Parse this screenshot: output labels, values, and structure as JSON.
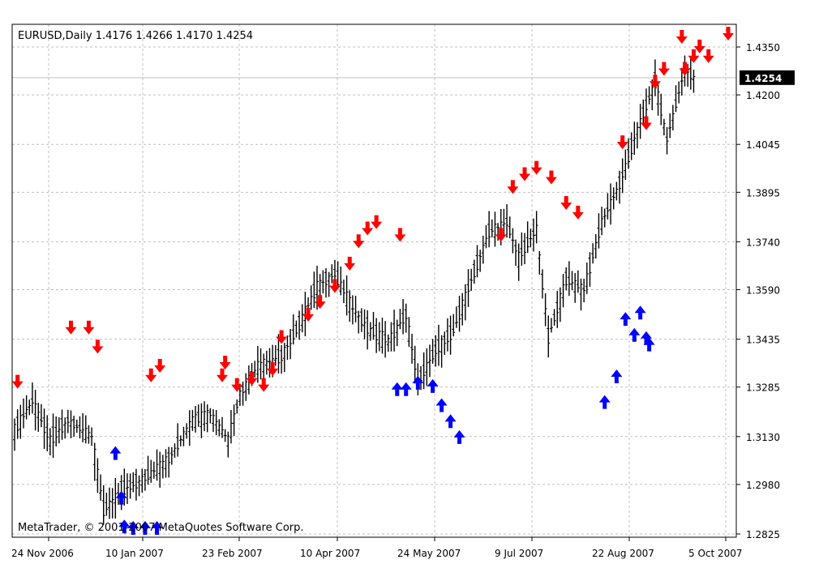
{
  "chart_data": {
    "type": "ohlc_bar",
    "symbol_header": "EURUSD,Daily  1.4176 1.4266 1.4170 1.4254",
    "copyright": "MetaTrader, © 2001-2007 MetaQuotes Software Corp.",
    "current_price_label": "1.4254",
    "current_price": 1.4254,
    "y_ticks": [
      "1.4350",
      "1.4200",
      "1.4045",
      "1.3895",
      "1.3740",
      "1.3590",
      "1.3435",
      "1.3285",
      "1.3130",
      "1.2980",
      "1.2825"
    ],
    "y_tick_values": [
      1.435,
      1.42,
      1.4045,
      1.3895,
      1.374,
      1.359,
      1.3435,
      1.3285,
      1.313,
      1.298,
      1.2825
    ],
    "ylim": [
      1.281,
      1.4425
    ],
    "x_ticks": [
      "24 Nov 2006",
      "10 Jan 2007",
      "23 Feb 2007",
      "10 Apr 2007",
      "24 May 2007",
      "9 Jul 2007",
      "22 Aug 2007",
      "5 Oct 2007"
    ],
    "bar_count": 230,
    "bars": [
      {
        "i": 0,
        "o": 1.309,
        "h": 1.3175,
        "l": 1.296,
        "c": 1.315
      },
      {
        "i": 6,
        "o": 1.315,
        "h": 1.327,
        "l": 1.312,
        "c": 1.324
      },
      {
        "i": 12,
        "o": 1.324,
        "h": 1.33,
        "l": 1.308,
        "c": 1.312
      },
      {
        "i": 18,
        "o": 1.312,
        "h": 1.32,
        "l": 1.305,
        "c": 1.318
      },
      {
        "i": 26,
        "o": 1.318,
        "h": 1.323,
        "l": 1.31,
        "c": 1.313
      },
      {
        "i": 30,
        "o": 1.313,
        "h": 1.315,
        "l": 1.287,
        "c": 1.29
      },
      {
        "i": 36,
        "o": 1.29,
        "h": 1.3,
        "l": 1.285,
        "c": 1.296
      },
      {
        "i": 44,
        "o": 1.296,
        "h": 1.303,
        "l": 1.288,
        "c": 1.3
      },
      {
        "i": 52,
        "o": 1.3,
        "h": 1.308,
        "l": 1.293,
        "c": 1.306
      },
      {
        "i": 60,
        "o": 1.306,
        "h": 1.32,
        "l": 1.304,
        "c": 1.318
      },
      {
        "i": 66,
        "o": 1.318,
        "h": 1.326,
        "l": 1.31,
        "c": 1.32
      },
      {
        "i": 72,
        "o": 1.32,
        "h": 1.328,
        "l": 1.308,
        "c": 1.312
      },
      {
        "i": 76,
        "o": 1.312,
        "h": 1.328,
        "l": 1.31,
        "c": 1.326
      },
      {
        "i": 82,
        "o": 1.326,
        "h": 1.338,
        "l": 1.323,
        "c": 1.335
      },
      {
        "i": 90,
        "o": 1.335,
        "h": 1.342,
        "l": 1.33,
        "c": 1.338
      },
      {
        "i": 96,
        "o": 1.338,
        "h": 1.35,
        "l": 1.335,
        "c": 1.348
      },
      {
        "i": 102,
        "o": 1.348,
        "h": 1.362,
        "l": 1.345,
        "c": 1.36
      },
      {
        "i": 108,
        "o": 1.36,
        "h": 1.368,
        "l": 1.355,
        "c": 1.364
      },
      {
        "i": 114,
        "o": 1.364,
        "h": 1.365,
        "l": 1.348,
        "c": 1.353
      },
      {
        "i": 120,
        "o": 1.353,
        "h": 1.356,
        "l": 1.342,
        "c": 1.346
      },
      {
        "i": 126,
        "o": 1.346,
        "h": 1.35,
        "l": 1.34,
        "c": 1.343
      },
      {
        "i": 132,
        "o": 1.343,
        "h": 1.354,
        "l": 1.34,
        "c": 1.351
      },
      {
        "i": 136,
        "o": 1.351,
        "h": 1.352,
        "l": 1.328,
        "c": 1.33
      },
      {
        "i": 142,
        "o": 1.33,
        "h": 1.342,
        "l": 1.328,
        "c": 1.34
      },
      {
        "i": 148,
        "o": 1.34,
        "h": 1.348,
        "l": 1.338,
        "c": 1.346
      },
      {
        "i": 154,
        "o": 1.346,
        "h": 1.365,
        "l": 1.344,
        "c": 1.362
      },
      {
        "i": 160,
        "o": 1.362,
        "h": 1.379,
        "l": 1.36,
        "c": 1.377
      },
      {
        "i": 166,
        "o": 1.377,
        "h": 1.383,
        "l": 1.372,
        "c": 1.38
      },
      {
        "i": 170,
        "o": 1.38,
        "h": 1.382,
        "l": 1.365,
        "c": 1.369
      },
      {
        "i": 176,
        "o": 1.369,
        "h": 1.382,
        "l": 1.368,
        "c": 1.378
      },
      {
        "i": 180,
        "o": 1.378,
        "h": 1.379,
        "l": 1.34,
        "c": 1.344
      },
      {
        "i": 186,
        "o": 1.344,
        "h": 1.368,
        "l": 1.342,
        "c": 1.362
      },
      {
        "i": 192,
        "o": 1.362,
        "h": 1.37,
        "l": 1.355,
        "c": 1.359
      },
      {
        "i": 198,
        "o": 1.359,
        "h": 1.382,
        "l": 1.358,
        "c": 1.38
      },
      {
        "i": 204,
        "o": 1.38,
        "h": 1.395,
        "l": 1.378,
        "c": 1.392
      },
      {
        "i": 210,
        "o": 1.392,
        "h": 1.412,
        "l": 1.39,
        "c": 1.409
      },
      {
        "i": 216,
        "o": 1.409,
        "h": 1.428,
        "l": 1.406,
        "c": 1.424
      },
      {
        "i": 220,
        "o": 1.424,
        "h": 1.425,
        "l": 1.402,
        "c": 1.406
      },
      {
        "i": 226,
        "o": 1.406,
        "h": 1.432,
        "l": 1.405,
        "c": 1.428
      },
      {
        "i": 229,
        "o": 1.4176,
        "h": 1.4266,
        "l": 1.417,
        "c": 1.4254
      }
    ],
    "sell_arrows": [
      {
        "i": 1,
        "v": 1.328
      },
      {
        "i": 19,
        "v": 1.345
      },
      {
        "i": 25,
        "v": 1.345
      },
      {
        "i": 28,
        "v": 1.339
      },
      {
        "i": 49,
        "v": 1.333
      },
      {
        "i": 46,
        "v": 1.33
      },
      {
        "i": 70,
        "v": 1.33
      },
      {
        "i": 71,
        "v": 1.334
      },
      {
        "i": 75,
        "v": 1.327
      },
      {
        "i": 80,
        "v": 1.329
      },
      {
        "i": 84,
        "v": 1.327
      },
      {
        "i": 87,
        "v": 1.332
      },
      {
        "i": 90,
        "v": 1.342
      },
      {
        "i": 99,
        "v": 1.349
      },
      {
        "i": 103,
        "v": 1.353
      },
      {
        "i": 108,
        "v": 1.358
      },
      {
        "i": 113,
        "v": 1.365
      },
      {
        "i": 116,
        "v": 1.372
      },
      {
        "i": 119,
        "v": 1.376
      },
      {
        "i": 122,
        "v": 1.378
      },
      {
        "i": 130,
        "v": 1.374
      },
      {
        "i": 164,
        "v": 1.374
      },
      {
        "i": 168,
        "v": 1.389
      },
      {
        "i": 172,
        "v": 1.393
      },
      {
        "i": 176,
        "v": 1.395
      },
      {
        "i": 181,
        "v": 1.392
      },
      {
        "i": 186,
        "v": 1.384
      },
      {
        "i": 190,
        "v": 1.381
      },
      {
        "i": 205,
        "v": 1.403
      },
      {
        "i": 213,
        "v": 1.409
      },
      {
        "i": 216,
        "v": 1.422
      },
      {
        "i": 219,
        "v": 1.426
      },
      {
        "i": 225,
        "v": 1.436
      },
      {
        "i": 226,
        "v": 1.426
      },
      {
        "i": 229,
        "v": 1.43
      },
      {
        "i": 231,
        "v": 1.433
      },
      {
        "i": 234,
        "v": 1.43
      },
      {
        "i": 241,
        "v": 1.44
      }
    ],
    "buy_arrows": [
      {
        "i": 34,
        "v": 1.31
      },
      {
        "i": 36,
        "v": 1.296
      },
      {
        "i": 37,
        "v": 1.287
      },
      {
        "i": 40,
        "v": 1.284
      },
      {
        "i": 44,
        "v": 1.281
      },
      {
        "i": 48,
        "v": 1.282
      },
      {
        "i": 129,
        "v": 1.33
      },
      {
        "i": 132,
        "v": 1.33
      },
      {
        "i": 136,
        "v": 1.332
      },
      {
        "i": 141,
        "v": 1.331
      },
      {
        "i": 144,
        "v": 1.325
      },
      {
        "i": 147,
        "v": 1.32
      },
      {
        "i": 150,
        "v": 1.315
      },
      {
        "i": 199,
        "v": 1.326
      },
      {
        "i": 203,
        "v": 1.334
      },
      {
        "i": 206,
        "v": 1.352
      },
      {
        "i": 209,
        "v": 1.347
      },
      {
        "i": 211,
        "v": 1.354
      },
      {
        "i": 214,
        "v": 1.344
      },
      {
        "i": 213,
        "v": 1.346
      }
    ],
    "colors": {
      "bars": "#000000",
      "sell": "#ff0000",
      "buy": "#0000ff",
      "grid": "#c0c0c0",
      "price_line": "#c0c0c0",
      "price_label_bg": "#000000",
      "price_label_fg": "#ffffff"
    },
    "grid": true
  }
}
